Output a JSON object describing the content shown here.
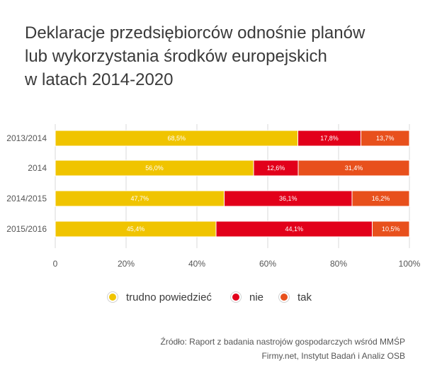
{
  "title": {
    "line1": "Deklaracje przedsiębiorców odnośnie planów",
    "line2": "lub wykorzystania środków europejskich",
    "line3": "w latach 2014-2020"
  },
  "chart_data": {
    "type": "bar",
    "orientation": "horizontal",
    "stacked": true,
    "categories": [
      "2013/2014",
      "2014",
      "2014/2015",
      "2015/2016"
    ],
    "series": [
      {
        "name": "trudno powiedzieć",
        "color": "#f0c400",
        "values": [
          68.5,
          56.0,
          47.7,
          45.4
        ],
        "labels": [
          "68,5%",
          "56,0%",
          "47,7%",
          "45,4%"
        ]
      },
      {
        "name": "nie",
        "color": "#e2001a",
        "values": [
          17.8,
          12.6,
          36.1,
          44.1
        ],
        "labels": [
          "17,8%",
          "12,6%",
          "36,1%",
          "44,1%"
        ]
      },
      {
        "name": "tak",
        "color": "#e8501c",
        "values": [
          13.7,
          31.4,
          16.2,
          10.5
        ],
        "labels": [
          "13,7%",
          "31,4%",
          "16,2%",
          "10,5%"
        ]
      }
    ],
    "xlim": [
      0,
      100
    ],
    "xticks": [
      "0",
      "20%",
      "40%",
      "60%",
      "80%",
      "100%"
    ],
    "grid": true,
    "legend_position": "bottom"
  },
  "source": {
    "line1": "Źródło: Raport z badania nastrojów gospodarczych wśród MMŚP",
    "line2": "Firmy.net, Instytut Badań i Analiz OSB"
  }
}
